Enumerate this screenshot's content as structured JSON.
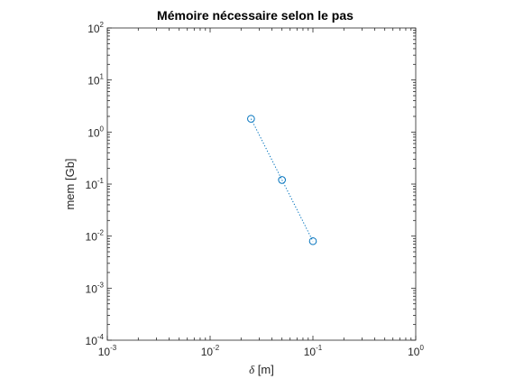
{
  "chart_data": {
    "type": "scatter",
    "title": "Mémoire nécessaire selon le pas",
    "xlabel_symbol": "δ",
    "xlabel_unit": " [m]",
    "ylabel": "mem [Gb]",
    "xscale": "log",
    "yscale": "log",
    "xlim": [
      0.001,
      1
    ],
    "ylim": [
      0.0001,
      100
    ],
    "grid": false,
    "box": true,
    "x_ticks": [
      {
        "value": 0.001,
        "base": "10",
        "exp": "-3"
      },
      {
        "value": 0.01,
        "base": "10",
        "exp": "-2"
      },
      {
        "value": 0.1,
        "base": "10",
        "exp": "-1"
      },
      {
        "value": 1,
        "base": "10",
        "exp": "0"
      }
    ],
    "y_ticks": [
      {
        "value": 0.0001,
        "base": "10",
        "exp": "-4"
      },
      {
        "value": 0.001,
        "base": "10",
        "exp": "-3"
      },
      {
        "value": 0.01,
        "base": "10",
        "exp": "-2"
      },
      {
        "value": 0.1,
        "base": "10",
        "exp": "-1"
      },
      {
        "value": 1,
        "base": "10",
        "exp": "0"
      },
      {
        "value": 10,
        "base": "10",
        "exp": "1"
      },
      {
        "value": 100,
        "base": "10",
        "exp": "2"
      }
    ],
    "series": [
      {
        "x": [
          0.025,
          0.05,
          0.1
        ],
        "y": [
          1.8,
          0.12,
          0.008
        ],
        "marker": "circle",
        "line_style": "dotted",
        "color": "#0072BD"
      }
    ]
  }
}
